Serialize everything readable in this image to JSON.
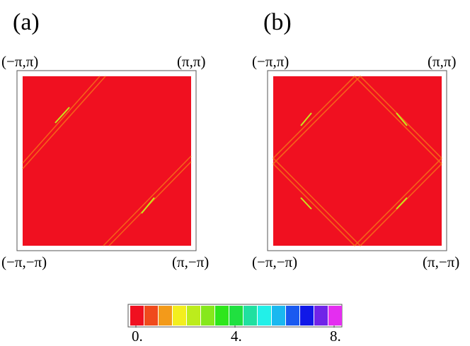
{
  "panels": [
    {
      "label": "(a)",
      "corners": {
        "top_left": "(−π,π)",
        "top_right": "(π,π)",
        "bottom_left": "(−π,−π)",
        "bottom_right": "(π,−π)"
      }
    },
    {
      "label": "(b)",
      "corners": {
        "top_left": "(−π,π)",
        "top_right": "(π,π)",
        "bottom_left": "(−π,−π)",
        "bottom_right": "(π,−π)"
      }
    }
  ],
  "colorbar": {
    "colors": [
      "#f01020",
      "#f04a1c",
      "#f39a1a",
      "#f3ee1e",
      "#bcec1c",
      "#86e81c",
      "#2ee61c",
      "#20e040",
      "#20e0a0",
      "#22f0e8",
      "#1ab8f0",
      "#1a5af0",
      "#1018e8",
      "#7024e8",
      "#e42ef0"
    ],
    "lim": [
      0,
      8
    ],
    "ticks": [
      {
        "value": 0,
        "label": "0."
      },
      {
        "value": 4,
        "label": "4."
      },
      {
        "value": 8,
        "label": "8."
      }
    ]
  }
}
